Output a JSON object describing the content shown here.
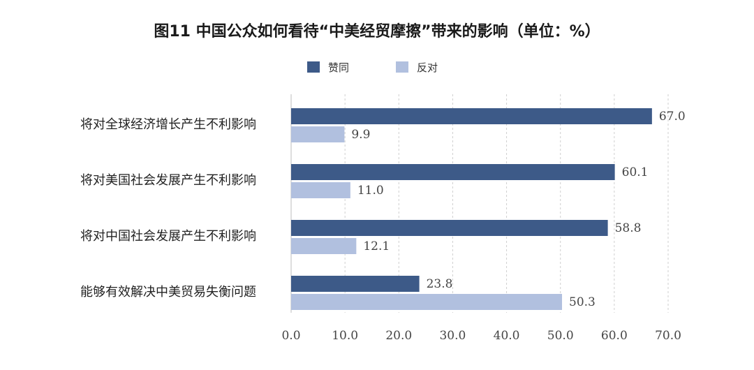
{
  "chart_data": {
    "type": "bar",
    "orientation": "horizontal",
    "title": "图11  中国公众如何看待“中美经贸摩擦”带来的影响（单位：%）",
    "categories": [
      "将对全球经济增长产生不利影响",
      "将对美国社会发展产生不利影响",
      "将对中国社会发展产生不利影响",
      "能够有效解决中美贸易失衡问题"
    ],
    "series": [
      {
        "name": "赞同",
        "color": "#3d5a88",
        "values": [
          67.0,
          60.1,
          58.8,
          23.8
        ]
      },
      {
        "name": "反对",
        "color": "#b1c0df",
        "values": [
          9.9,
          11.0,
          12.1,
          50.3
        ]
      }
    ],
    "value_labels": [
      [
        "67.0",
        "60.1",
        "58.8",
        "23.8"
      ],
      [
        "9.9",
        "11.0",
        "12.1",
        "50.3"
      ]
    ],
    "xlim": [
      0,
      70
    ],
    "xticks": [
      "0.0",
      "10.0",
      "20.0",
      "30.0",
      "40.0",
      "50.0",
      "60.0",
      "70.0"
    ],
    "xtick_values": [
      0,
      10,
      20,
      30,
      40,
      50,
      60,
      70
    ],
    "grid": "vertical-dashed",
    "legend_position": "top-center"
  }
}
